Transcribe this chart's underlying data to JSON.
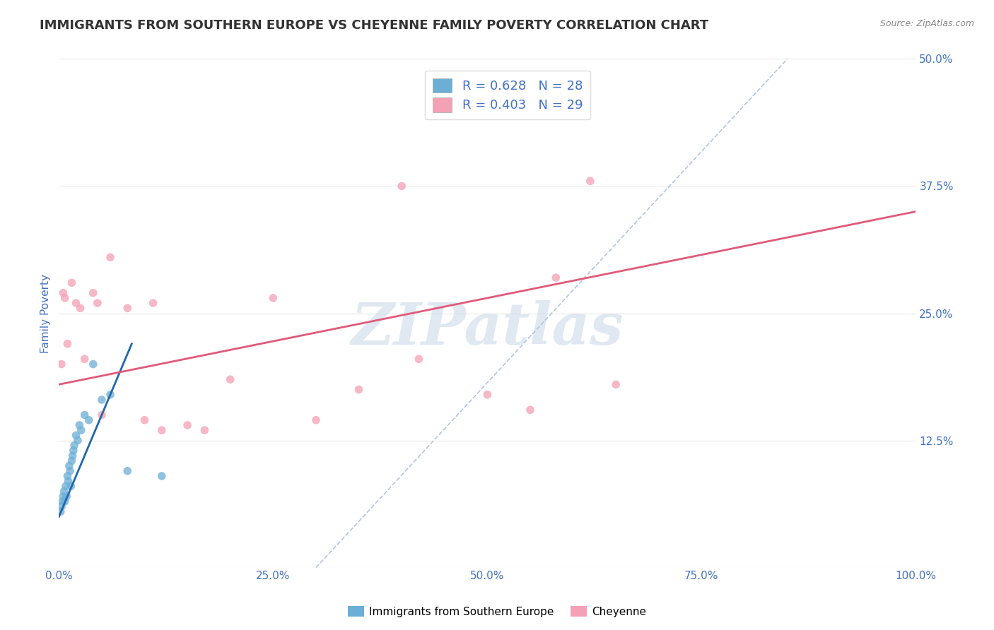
{
  "title": "IMMIGRANTS FROM SOUTHERN EUROPE VS CHEYENNE FAMILY POVERTY CORRELATION CHART",
  "source": "Source: ZipAtlas.com",
  "ylabel": "Family Poverty",
  "legend_label_blue": "Immigrants from Southern Europe",
  "legend_label_pink": "Cheyenne",
  "r_blue": 0.628,
  "n_blue": 28,
  "r_pink": 0.403,
  "n_pink": 29,
  "watermark": "ZIPatlas",
  "blue_scatter_x": [
    0.2,
    0.3,
    0.4,
    0.5,
    0.6,
    0.7,
    0.8,
    0.9,
    1.0,
    1.1,
    1.2,
    1.3,
    1.4,
    1.5,
    1.6,
    1.7,
    1.8,
    2.0,
    2.2,
    2.4,
    2.6,
    3.0,
    3.5,
    4.0,
    5.0,
    6.0,
    8.0,
    12.0
  ],
  "blue_scatter_y": [
    5.5,
    6.0,
    6.5,
    7.0,
    7.5,
    6.5,
    8.0,
    7.0,
    9.0,
    8.5,
    10.0,
    9.5,
    8.0,
    10.5,
    11.0,
    11.5,
    12.0,
    13.0,
    12.5,
    14.0,
    13.5,
    15.0,
    14.5,
    20.0,
    16.5,
    17.0,
    9.5,
    9.0
  ],
  "pink_scatter_x": [
    0.3,
    0.5,
    0.7,
    1.0,
    1.5,
    2.0,
    2.5,
    3.0,
    4.0,
    4.5,
    5.0,
    6.0,
    8.0,
    10.0,
    11.0,
    12.0,
    15.0,
    17.0,
    20.0,
    25.0,
    30.0,
    35.0,
    40.0,
    42.0,
    50.0,
    55.0,
    58.0,
    62.0,
    65.0
  ],
  "pink_scatter_y": [
    20.0,
    27.0,
    26.5,
    22.0,
    28.0,
    26.0,
    25.5,
    20.5,
    27.0,
    26.0,
    15.0,
    30.5,
    25.5,
    14.5,
    26.0,
    13.5,
    14.0,
    13.5,
    18.5,
    26.5,
    14.5,
    17.5,
    37.5,
    20.5,
    17.0,
    15.5,
    28.5,
    38.0,
    18.0
  ],
  "blue_line_x": [
    0.0,
    8.5
  ],
  "blue_line_y": [
    5.0,
    22.0
  ],
  "pink_line_x": [
    0.0,
    100.0
  ],
  "pink_line_y": [
    18.0,
    35.0
  ],
  "dashed_line_x": [
    30.0,
    85.0
  ],
  "dashed_line_y": [
    0.0,
    50.0
  ],
  "xlim": [
    0,
    100
  ],
  "ylim": [
    0,
    50
  ],
  "xticks": [
    0,
    25,
    50,
    75,
    100
  ],
  "xticklabels": [
    "0.0%",
    "25.0%",
    "50.0%",
    "75.0%",
    "100.0%"
  ],
  "yticks_right": [
    0,
    12.5,
    25.0,
    37.5,
    50.0
  ],
  "yticklabels_right": [
    "",
    "12.5%",
    "25.0%",
    "37.5%",
    "50.0%"
  ],
  "blue_color": "#6baed6",
  "pink_color": "#f4a0b5",
  "blue_line_color": "#2166ac",
  "pink_line_color": "#e05a7a",
  "dashed_color": "#aec7e8",
  "title_color": "#333333",
  "axis_label_color": "#4472c4",
  "tick_color": "#4472c4",
  "grid_color": "#e8e8e8",
  "background_color": "#ffffff",
  "watermark_color": "#ccd9e8",
  "title_fontsize": 13,
  "axis_label_fontsize": 11,
  "tick_fontsize": 11,
  "source_fontsize": 9
}
